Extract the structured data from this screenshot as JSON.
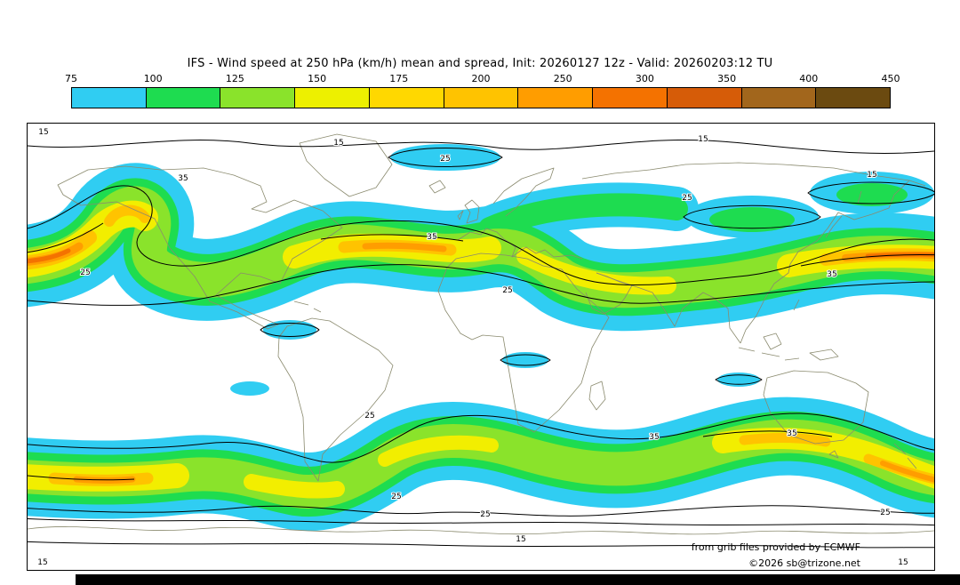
{
  "title": "IFS - Wind speed at 250 hPa (km/h) mean and spread, Init: 20260127 12z - Valid: 20260203:12 TU",
  "colorbar": {
    "ticks": [
      "75",
      "100",
      "125",
      "150",
      "175",
      "200",
      "250",
      "300",
      "350",
      "400",
      "450"
    ],
    "colors": [
      "#30CDF2",
      "#1EDC50",
      "#8AE32B",
      "#EDF000",
      "#FFD800",
      "#FFC300",
      "#FF9D00",
      "#F47200",
      "#D65C08",
      "#A2661C",
      "#6B4A10"
    ]
  },
  "credits": {
    "source": "from grib files provided by ECMWF",
    "copyright": "©2026 sb@trizone.net"
  },
  "chart_data": {
    "type": "heatmap",
    "title": "IFS - Wind speed at 250 hPa (km/h) mean and spread",
    "model": "IFS",
    "variable": "Wind speed at 250 hPa",
    "units": "km/h",
    "statistics": "mean (color fill) and spread (black contours)",
    "init": "20260127 12z",
    "valid": "20260203:12 TU",
    "projection": "global equirectangular (90N-90S, 180W-180E)",
    "fill_levels_kmh": [
      75,
      100,
      125,
      150,
      175,
      200,
      250,
      300,
      350,
      400,
      450
    ],
    "fill_colors": [
      "#30CDF2",
      "#1EDC50",
      "#8AE32B",
      "#EDF000",
      "#FFD800",
      "#FFC300",
      "#FF9D00",
      "#F47200",
      "#D65C08",
      "#A2661C",
      "#6B4A10"
    ],
    "spread_contour_labels": [
      "15",
      "25",
      "35"
    ],
    "features": [
      "Northern-hemisphere jet with 250-350 km/h cores over the western North Atlantic, the central Atlantic toward Europe, and the western/central North Pacific",
      "Omega/cut-off circulation over northeastern North America",
      "Continuous southern-hemisphere circumpolar band (100-250 km/h) near 40-60S with cores in the South Atlantic and south of Australia / South Pacific",
      "Cyan patches (75-100 km/h) over the Arctic, northern Europe, Siberia, Bering Sea and scattered tropical areas"
    ]
  }
}
